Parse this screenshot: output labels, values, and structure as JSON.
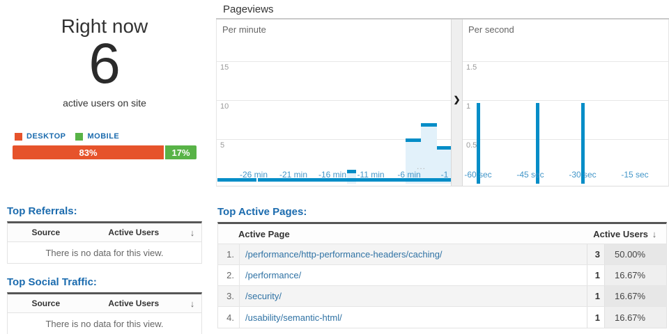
{
  "right_now": {
    "title": "Right now",
    "active_users_count": "6",
    "subtitle": "active users on site",
    "devices": [
      {
        "label": "DESKTOP",
        "percent": 83,
        "percent_label": "83%",
        "color": "#e6532b"
      },
      {
        "label": "MOBILE",
        "percent": 17,
        "percent_label": "17%",
        "color": "#58b347"
      }
    ]
  },
  "pageviews": {
    "title": "Pageviews"
  },
  "chart_data": [
    {
      "type": "bar",
      "title": "Per minute",
      "y_ticks": [
        5,
        10,
        15
      ],
      "ylim": [
        0,
        20
      ],
      "grid": true,
      "x_tick_labels": [
        "-26 min",
        "-21 min",
        "-16 min",
        "-11 min",
        "-6 min",
        "-1"
      ],
      "overflow_label": "...",
      "bar_color": "#058dc7",
      "bar_fill_color": "#e2f1fa",
      "bars": [
        {
          "minute": -13,
          "value": 1
        },
        {
          "minute": -5,
          "value": 5
        },
        {
          "minute": -3,
          "value": 7
        },
        {
          "minute": -1,
          "value": 4
        }
      ]
    },
    {
      "type": "bar",
      "title": "Per second",
      "y_ticks": [
        0.5,
        1,
        1.5
      ],
      "ylim": [
        0,
        2
      ],
      "grid": true,
      "x_tick_labels": [
        "-60 sec",
        "-45 sec",
        "-30 sec",
        "-15 sec"
      ],
      "bar_color": "#058dc7",
      "bars": [
        {
          "second": -60,
          "value": 1
        },
        {
          "second": -43,
          "value": 1
        },
        {
          "second": -30,
          "value": 1
        }
      ]
    }
  ],
  "icons": {
    "chevron_right": "❯",
    "sort_desc": "↓"
  },
  "top_referrals": {
    "heading": "Top Referrals:",
    "columns": [
      "Source",
      "Active Users"
    ],
    "empty_message": "There is no data for this view."
  },
  "top_social": {
    "heading": "Top Social Traffic:",
    "columns": [
      "Source",
      "Active Users"
    ],
    "empty_message": "There is no data for this view."
  },
  "top_active_pages": {
    "heading": "Top Active Pages:",
    "columns": [
      "Active Page",
      "Active Users"
    ],
    "rows": [
      {
        "rank": "1.",
        "page": "/performance/http-performance-headers/caching/",
        "active_users": "3",
        "percent": "50.00%"
      },
      {
        "rank": "2.",
        "page": "/performance/",
        "active_users": "1",
        "percent": "16.67%"
      },
      {
        "rank": "3.",
        "page": "/security/",
        "active_users": "1",
        "percent": "16.67%"
      },
      {
        "rank": "4.",
        "page": "/usability/semantic-html/",
        "active_users": "1",
        "percent": "16.67%"
      }
    ]
  }
}
